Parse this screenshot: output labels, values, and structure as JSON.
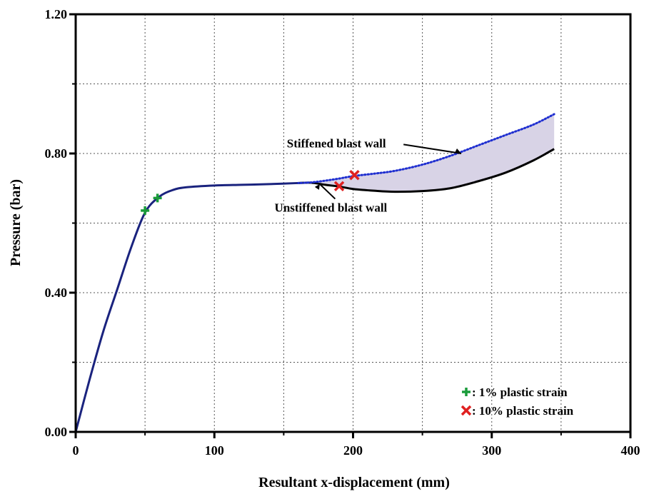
{
  "chart_data": {
    "type": "line",
    "title": "",
    "xlabel": "Resultant x-displacement (mm)",
    "ylabel": "Pressure (bar)",
    "xlim": [
      0,
      400
    ],
    "ylim": [
      0,
      1.2
    ],
    "x_ticks": [
      0,
      100,
      200,
      300,
      400
    ],
    "x_tick_labels": [
      "0",
      "100",
      "200",
      "300",
      "400"
    ],
    "y_ticks": [
      0,
      0.4,
      0.8,
      1.2
    ],
    "y_tick_labels": [
      "0.00",
      "0.40",
      "0.80",
      "1.20"
    ],
    "grid": true,
    "series": [
      {
        "name": "Unstiffened blast wall",
        "color": "#000000",
        "style": "solid",
        "points": [
          [
            0,
            0
          ],
          [
            10,
            0.15
          ],
          [
            20,
            0.29
          ],
          [
            30,
            0.41
          ],
          [
            40,
            0.53
          ],
          [
            50,
            0.63
          ],
          [
            60,
            0.675
          ],
          [
            70,
            0.695
          ],
          [
            80,
            0.703
          ],
          [
            100,
            0.708
          ],
          [
            120,
            0.71
          ],
          [
            140,
            0.712
          ],
          [
            160,
            0.715
          ],
          [
            170,
            0.716
          ],
          [
            180,
            0.71
          ],
          [
            190,
            0.705
          ],
          [
            200,
            0.698
          ],
          [
            215,
            0.693
          ],
          [
            230,
            0.69
          ],
          [
            250,
            0.692
          ],
          [
            270,
            0.7
          ],
          [
            290,
            0.72
          ],
          [
            310,
            0.745
          ],
          [
            330,
            0.78
          ],
          [
            345,
            0.813
          ]
        ]
      },
      {
        "name": "Stiffened blast wall",
        "color": "#1f2fd0",
        "style": "dotted",
        "points": [
          [
            0,
            0
          ],
          [
            10,
            0.15
          ],
          [
            20,
            0.29
          ],
          [
            30,
            0.41
          ],
          [
            40,
            0.53
          ],
          [
            50,
            0.63
          ],
          [
            60,
            0.675
          ],
          [
            70,
            0.695
          ],
          [
            80,
            0.703
          ],
          [
            100,
            0.708
          ],
          [
            120,
            0.71
          ],
          [
            140,
            0.712
          ],
          [
            160,
            0.715
          ],
          [
            170,
            0.717
          ],
          [
            180,
            0.722
          ],
          [
            190,
            0.728
          ],
          [
            200,
            0.735
          ],
          [
            215,
            0.742
          ],
          [
            230,
            0.75
          ],
          [
            250,
            0.768
          ],
          [
            270,
            0.793
          ],
          [
            290,
            0.823
          ],
          [
            310,
            0.853
          ],
          [
            330,
            0.883
          ],
          [
            345,
            0.913
          ]
        ]
      }
    ],
    "shared_curve_color": "#1a237e",
    "shared_curve_until_x": 165,
    "shaded_region": {
      "between": [
        "Stiffened blast wall",
        "Unstiffened blast wall"
      ],
      "from_x": 165,
      "to_x": 345,
      "color": "#d8d3e6"
    },
    "markers": [
      {
        "type": "plus",
        "color": "#1a9b3a",
        "x": 50,
        "y": 0.636
      },
      {
        "type": "plus",
        "color": "#1a9b3a",
        "x": 59,
        "y": 0.672
      },
      {
        "type": "cross",
        "color": "#e02020",
        "x": 190,
        "y": 0.706
      },
      {
        "type": "cross",
        "color": "#e02020",
        "x": 201,
        "y": 0.738
      }
    ],
    "annotations": [
      {
        "text": "Stiffened blast wall",
        "x": 188,
        "y": 0.83
      },
      {
        "text": "Unstiffened blast wall",
        "x": 184,
        "y": 0.645
      }
    ],
    "legend": {
      "placement": "bottom-right",
      "entries": [
        {
          "symbol": "plus",
          "color": "#1a9b3a",
          "text": ": 1% plastic strain"
        },
        {
          "symbol": "cross",
          "color": "#e02020",
          "text": ": 10% plastic strain"
        }
      ]
    }
  }
}
